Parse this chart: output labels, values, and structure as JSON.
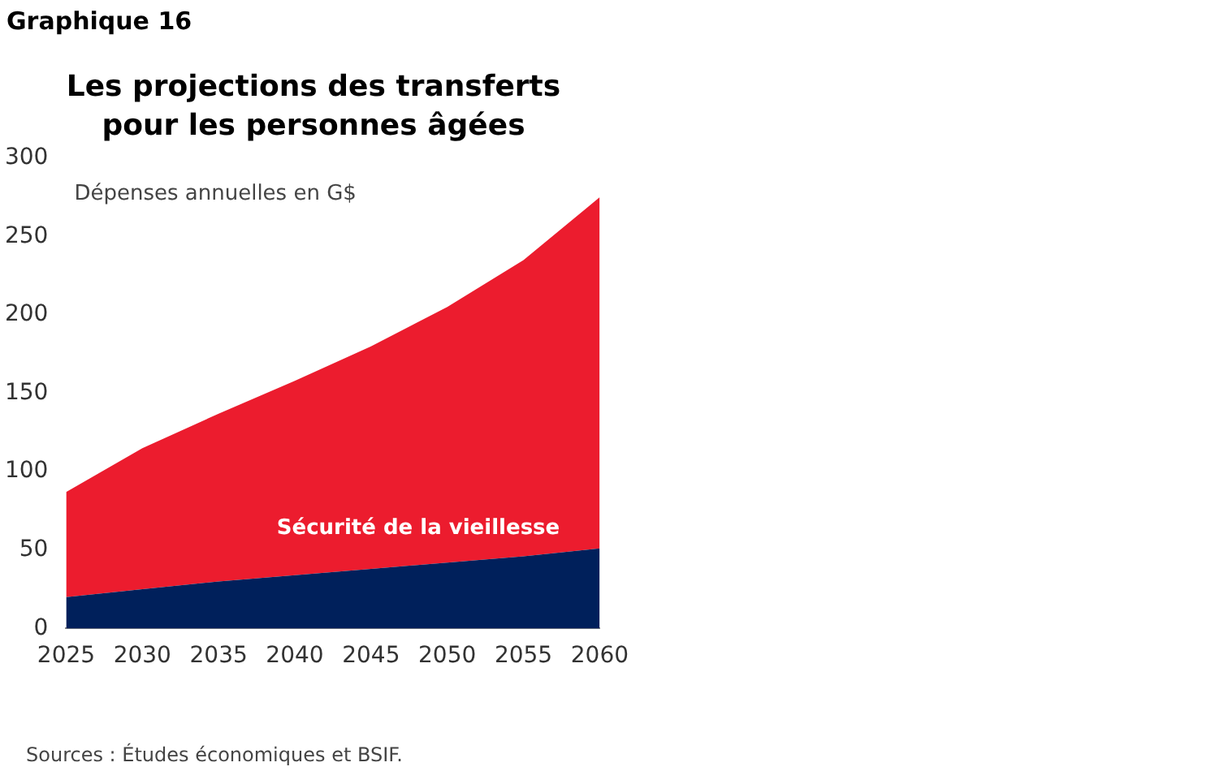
{
  "chart_data": {
    "type": "area",
    "title": "Les projections des transferts pour les personnes âgées",
    "subtitle": "Graphique 16",
    "ylabel": "Dépenses annuelles en G$",
    "annotations": [
      "Sources : Études économiques et BSIF."
    ],
    "x": [
      2025,
      2030,
      2035,
      2040,
      2045,
      2050,
      2055,
      2060
    ],
    "stacked": true,
    "series": [
      {
        "color": "#00205b",
        "values": [
          20,
          25,
          30,
          34,
          38,
          42,
          46,
          51
        ]
      },
      {
        "name": "Sécurité de la vieillesse",
        "color": "#ec1c2e",
        "values": [
          67,
          90,
          107,
          124,
          142,
          163,
          189,
          224
        ]
      }
    ],
    "xlim": [
      2025,
      2060
    ],
    "xticks": [
      2025,
      2030,
      2035,
      2040,
      2045,
      2050,
      2055,
      2060
    ],
    "ylim": [
      0,
      300
    ],
    "yticks": [
      0,
      50,
      100,
      150,
      200,
      250,
      300
    ],
    "grid": false,
    "legend": false
  }
}
